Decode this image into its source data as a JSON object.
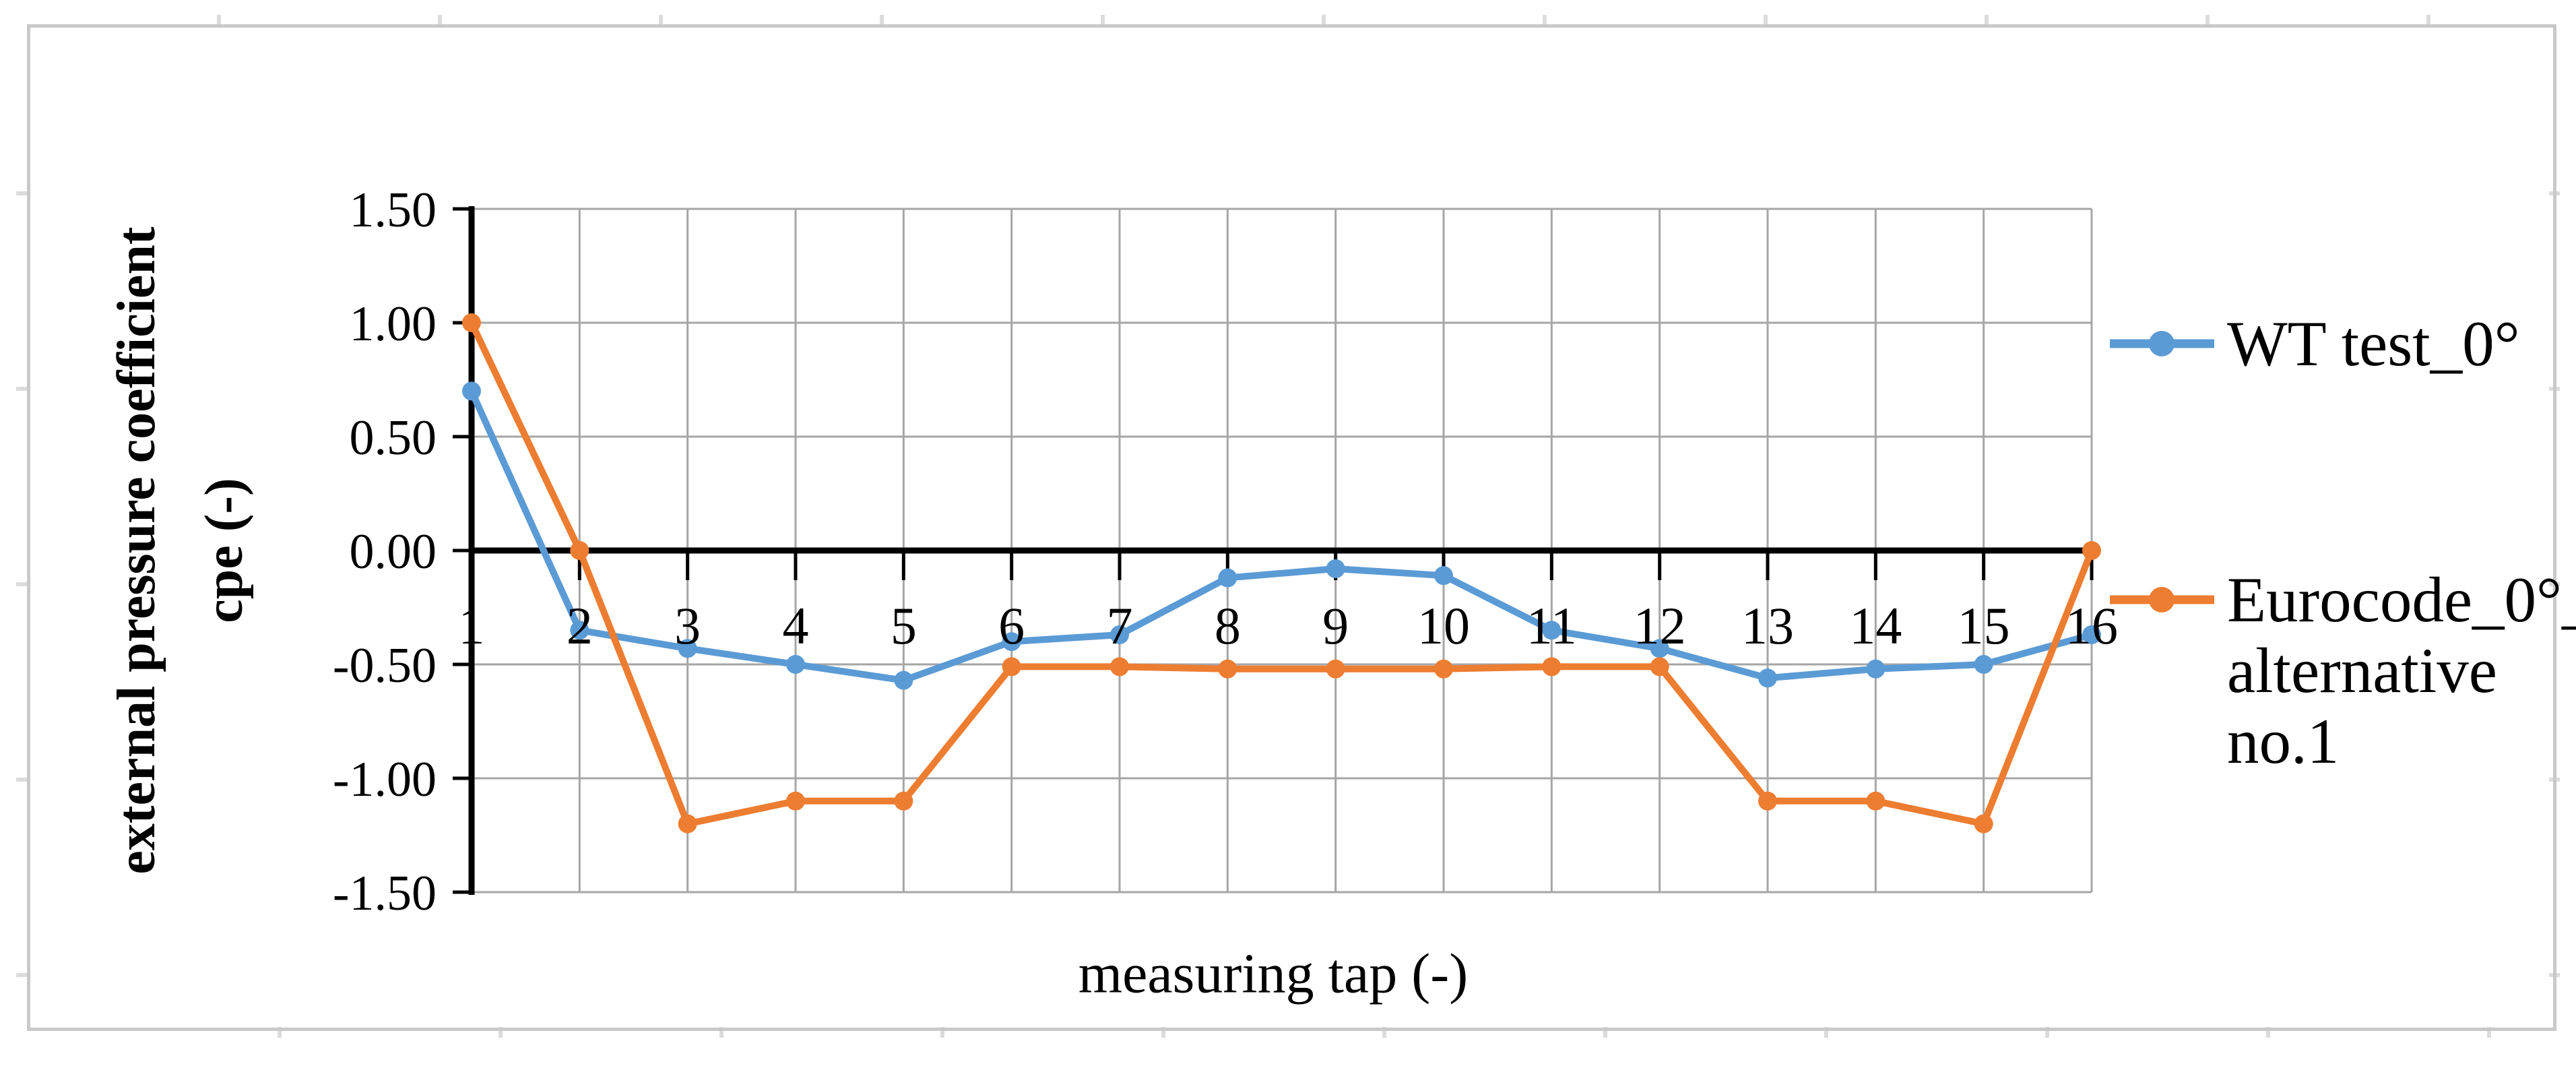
{
  "figure": {
    "y_axis_title_line1": "external pressure coefficient",
    "y_axis_title_line2": "cpe (-)",
    "x_axis_title": "measuring tap (-)"
  },
  "legend": {
    "position": "right",
    "entries": [
      {
        "label": "WT test_0°",
        "lines": [
          "WT test_0°"
        ],
        "color": "#5B9BD5"
      },
      {
        "label": "Eurocode_0°_alternative no.1",
        "lines": [
          "Eurocode_0°_",
          "alternative",
          "no.1"
        ],
        "color": "#ED7D31"
      }
    ]
  },
  "colors": {
    "series_wt_blue": "#5B9BD5",
    "series_eurocode_orange": "#ED7D31",
    "gridline_gray": "#A6A6A6",
    "axis_black": "#000000",
    "frame_gray": "#C9C9C9"
  },
  "chart_data": {
    "type": "line",
    "title": "",
    "xlabel": "measuring tap (-)",
    "ylabel": "external pressure coefficient cpe (-)",
    "x": [
      1,
      2,
      3,
      4,
      5,
      6,
      7,
      8,
      9,
      10,
      11,
      12,
      13,
      14,
      15,
      16
    ],
    "x_tick_labels": [
      "1",
      "2",
      "3",
      "4",
      "5",
      "6",
      "7",
      "8",
      "9",
      "10",
      "11",
      "12",
      "13",
      "14",
      "15",
      "16"
    ],
    "y_ticks": [
      1.5,
      1.0,
      0.5,
      0.0,
      -0.5,
      -1.0,
      -1.5
    ],
    "y_tick_labels": [
      "1.50",
      "1.00",
      "0.50",
      "0.00",
      "-0.50",
      "-1.00",
      "-1.50"
    ],
    "ylim": [
      -1.5,
      1.5
    ],
    "grid": true,
    "legend_position": "right",
    "series": [
      {
        "name": "WT test_0°",
        "color": "#5B9BD5",
        "values": [
          0.7,
          -0.35,
          -0.43,
          -0.5,
          -0.57,
          -0.4,
          -0.37,
          -0.12,
          -0.08,
          -0.11,
          -0.35,
          -0.43,
          -0.56,
          -0.52,
          -0.5,
          -0.37
        ]
      },
      {
        "name": "Eurocode_0°_alternative no.1",
        "color": "#ED7D31",
        "values": [
          1.0,
          0.0,
          -1.2,
          -1.1,
          -1.1,
          -0.51,
          -0.51,
          -0.52,
          -0.52,
          -0.52,
          -0.51,
          -0.51,
          -1.1,
          -1.1,
          -1.2,
          0.0
        ]
      }
    ]
  }
}
